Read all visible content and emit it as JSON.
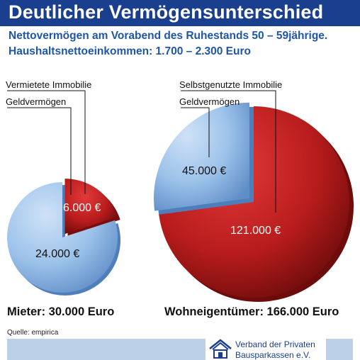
{
  "title": "Deutlicher Vermögensunterschied",
  "subtitle_line1": "Nettovermögen am Vorabend des Ruhestands 50 – 59jährige.",
  "subtitle_line2": "Haushaltsnettoeinkommen: 1.700 – 2.300 Euro",
  "source": "Quelle: empirica",
  "logo": {
    "line1": "Verband der Privaten",
    "line2": "Bausparkassen e.V.",
    "icon": "house-logo-icon"
  },
  "colors": {
    "title_bar": "#1a3f8e",
    "subtitle": "#1f56a6",
    "property_slice": "#b81c1c",
    "financial_slice": "#8fb8e6"
  },
  "chart_data": [
    {
      "type": "pie",
      "title": "Mieter: 30.000 Euro",
      "slices": [
        {
          "name": "Vermietete Immobilie",
          "value": 6000,
          "value_label": "6.000 €",
          "color": "#b81c1c",
          "exploded": true
        },
        {
          "name": "Geldvermögen",
          "value": 24000,
          "value_label": "24.000 €",
          "color": "#8fb8e6",
          "exploded": false
        }
      ]
    },
    {
      "type": "pie",
      "title": "Wohneigentümer: 166.000 Euro",
      "slices": [
        {
          "name": "Selbstgenutzte Immobilie",
          "value": 121000,
          "value_label": "121.000 €",
          "color": "#b81c1c",
          "exploded": false
        },
        {
          "name": "Geldvermögen",
          "value": 45000,
          "value_label": "45.000 €",
          "color": "#8fb8e6",
          "exploded": true
        }
      ]
    }
  ]
}
